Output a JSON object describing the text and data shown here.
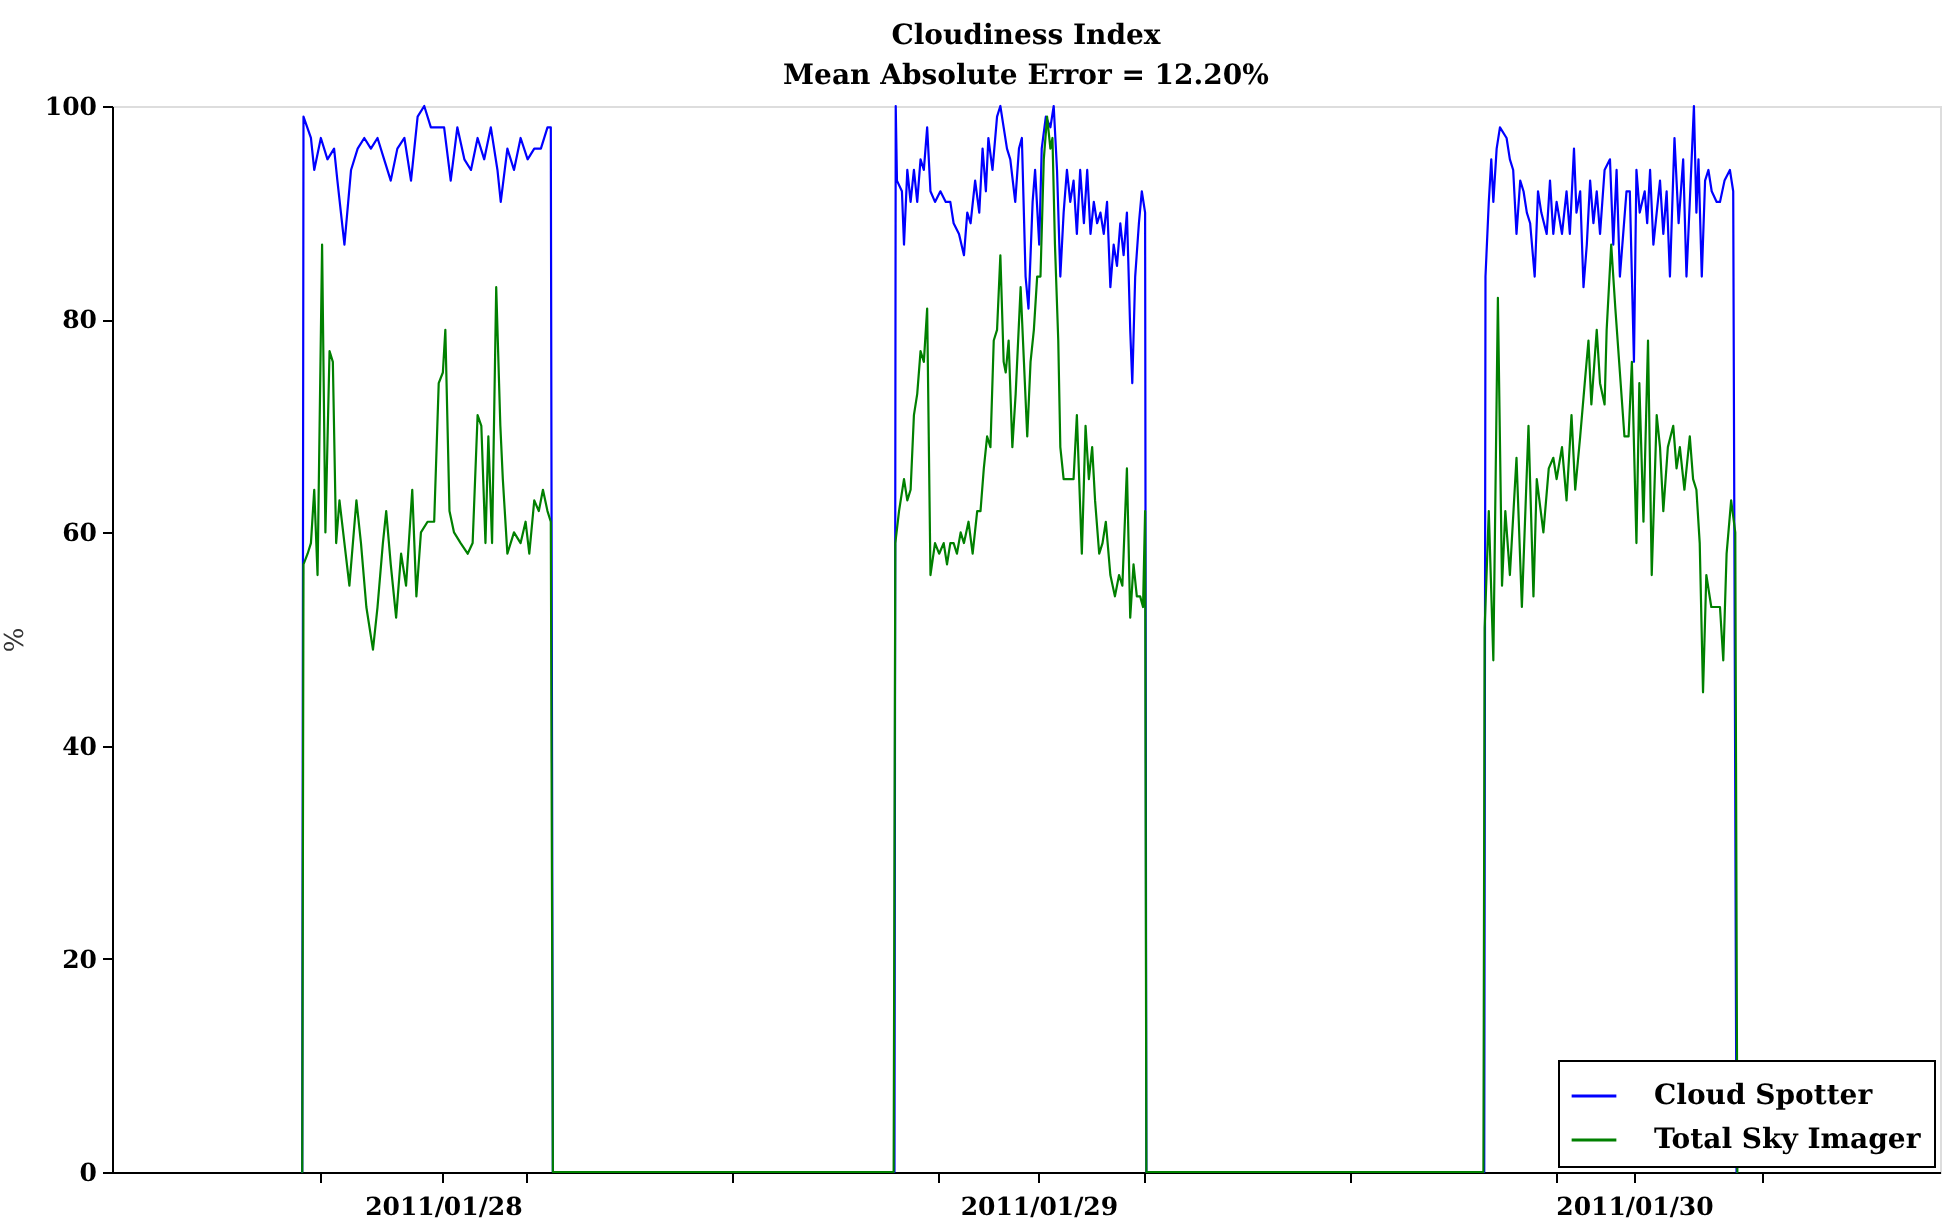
{
  "chart_data": {
    "type": "line",
    "title": "Cloudiness Index",
    "subtitle": "Mean Absolute Error = 12.20%",
    "ylabel": "%",
    "xlim": [
      "2011-01-27T10:40",
      "2011-01-30T12:20"
    ],
    "xticks": [
      {
        "value": "2011-01-27T19:02",
        "label": null
      },
      {
        "value": "2011-01-28",
        "label": "2011/01/28"
      },
      {
        "value": "2011-01-28T03:22",
        "label": null
      },
      {
        "value": "2011-01-28T11:39",
        "label": null
      },
      {
        "value": "2011-01-28T19:55",
        "label": null
      },
      {
        "value": "2011-01-29",
        "label": "2011/01/29"
      },
      {
        "value": "2011-01-29T04:15",
        "label": null
      },
      {
        "value": "2011-01-29T12:33",
        "label": null
      },
      {
        "value": "2011-01-29T20:51",
        "label": null
      },
      {
        "value": "2011-01-30",
        "label": "2011/01/30"
      },
      {
        "value": "2011-01-30T05:10",
        "label": null
      }
    ],
    "ylim": [
      0,
      100
    ],
    "yticks": [
      0,
      20,
      40,
      60,
      80,
      100
    ],
    "legend": "bottom right",
    "series": [
      {
        "name": "Cloud Spotter",
        "color": "#0000ff",
        "x": [
          "2011-01-27T18:20",
          "2011-01-27T18:23",
          "2011-01-27T18:41",
          "2011-01-27T18:49",
          "2011-01-27T19:05",
          "2011-01-27T19:21",
          "2011-01-27T19:37",
          "2011-01-27T19:45",
          "2011-01-27T20:02",
          "2011-01-27T20:18",
          "2011-01-27T20:34",
          "2011-01-27T20:50",
          "2011-01-27T21:06",
          "2011-01-27T21:22",
          "2011-01-27T21:38",
          "2011-01-27T21:54",
          "2011-01-27T22:10",
          "2011-01-27T22:27",
          "2011-01-27T22:43",
          "2011-01-27T22:59",
          "2011-01-27T23:15",
          "2011-01-27T23:31",
          "2011-01-27T23:47",
          "2011-01-28T00:03",
          "2011-01-28T00:19",
          "2011-01-28T00:35",
          "2011-01-28T00:52",
          "2011-01-28T01:08",
          "2011-01-28T01:24",
          "2011-01-28T01:40",
          "2011-01-28T01:56",
          "2011-01-28T02:12",
          "2011-01-28T02:20",
          "2011-01-28T02:36",
          "2011-01-28T02:52",
          "2011-01-28T03:08",
          "2011-01-28T03:25",
          "2011-01-28T03:41",
          "2011-01-28T03:57",
          "2011-01-28T04:13",
          "2011-01-28T04:21",
          "2011-01-28T04:26",
          "2011-01-28T18:12",
          "2011-01-28T18:15",
          "2011-01-28T18:18",
          "2011-01-28T18:30",
          "2011-01-28T18:35",
          "2011-01-28T18:43",
          "2011-01-28T18:51",
          "2011-01-28T18:59",
          "2011-01-28T19:07",
          "2011-01-28T19:15",
          "2011-01-28T19:23",
          "2011-01-28T19:31",
          "2011-01-28T19:39",
          "2011-01-28T19:50",
          "2011-01-28T20:03",
          "2011-01-28T20:16",
          "2011-01-28T20:27",
          "2011-01-28T20:35",
          "2011-01-28T20:48",
          "2011-01-28T21:00",
          "2011-01-28T21:08",
          "2011-01-28T21:16",
          "2011-01-28T21:27",
          "2011-01-28T21:37",
          "2011-01-28T21:45",
          "2011-01-28T21:53",
          "2011-01-28T21:59",
          "2011-01-28T22:09",
          "2011-01-28T22:20",
          "2011-01-28T22:28",
          "2011-01-28T22:36",
          "2011-01-28T22:44",
          "2011-01-28T22:52",
          "2011-01-28T23:04",
          "2011-01-28T23:13",
          "2011-01-28T23:20",
          "2011-01-28T23:29",
          "2011-01-28T23:36",
          "2011-01-28T23:46",
          "2011-01-28T23:52",
          "2011-01-29T00:02",
          "2011-01-29T00:08",
          "2011-01-29T00:18",
          "2011-01-29T00:29",
          "2011-01-29T00:37",
          "2011-01-29T00:45",
          "2011-01-29T00:53",
          "2011-01-29T01:01",
          "2011-01-29T01:09",
          "2011-01-29T01:17",
          "2011-01-29T01:25",
          "2011-01-29T01:33",
          "2011-01-29T01:41",
          "2011-01-29T01:50",
          "2011-01-29T01:58",
          "2011-01-29T02:06",
          "2011-01-29T02:14",
          "2011-01-29T02:22",
          "2011-01-29T02:30",
          "2011-01-29T02:38",
          "2011-01-29T02:46",
          "2011-01-29T02:54",
          "2011-01-29T03:02",
          "2011-01-29T03:10",
          "2011-01-29T03:18",
          "2011-01-29T03:26",
          "2011-01-29T03:34",
          "2011-01-29T03:42",
          "2011-01-29T03:47",
          "2011-01-29T03:54",
          "2011-01-29T04:03",
          "2011-01-29T04:10",
          "2011-01-29T04:18",
          "2011-01-29T04:21",
          "2011-01-29T17:58",
          "2011-01-29T18:01",
          "2011-01-29T18:09",
          "2011-01-29T18:15",
          "2011-01-29T18:20",
          "2011-01-29T18:28",
          "2011-01-29T18:36",
          "2011-01-29T18:52",
          "2011-01-29T19:00",
          "2011-01-29T19:08",
          "2011-01-29T19:16",
          "2011-01-29T19:25",
          "2011-01-29T19:33",
          "2011-01-29T19:41",
          "2011-01-29T19:49",
          "2011-01-29T20:00",
          "2011-01-29T20:08",
          "2011-01-29T20:16",
          "2011-01-29T20:29",
          "2011-01-29T20:37",
          "2011-01-29T20:45",
          "2011-01-29T20:53",
          "2011-01-29T21:06",
          "2011-01-29T21:17",
          "2011-01-29T21:25",
          "2011-01-29T21:35",
          "2011-01-29T21:41",
          "2011-01-29T21:50",
          "2011-01-29T21:58",
          "2011-01-29T22:06",
          "2011-01-29T22:14",
          "2011-01-29T22:22",
          "2011-01-29T22:30",
          "2011-01-29T22:38",
          "2011-01-29T22:49",
          "2011-01-29T23:02",
          "2011-01-29T23:10",
          "2011-01-29T23:18",
          "2011-01-29T23:26",
          "2011-01-29T23:34",
          "2011-01-29T23:42",
          "2011-01-29T23:50",
          "2011-01-30T00:00",
          "2011-01-30T00:06",
          "2011-01-30T00:14",
          "2011-01-30T00:26",
          "2011-01-30T00:32",
          "2011-01-30T00:39",
          "2011-01-30T00:47",
          "2011-01-30T00:55",
          "2011-01-30T01:03",
          "2011-01-30T01:11",
          "2011-01-30T01:19",
          "2011-01-30T01:27",
          "2011-01-30T01:38",
          "2011-01-30T01:48",
          "2011-01-30T01:59",
          "2011-01-30T02:07",
          "2011-01-30T02:15",
          "2011-01-30T02:25",
          "2011-01-30T02:31",
          "2011-01-30T02:36",
          "2011-01-30T02:44",
          "2011-01-30T02:52",
          "2011-01-30T03:00",
          "2011-01-30T03:08",
          "2011-01-30T03:20",
          "2011-01-30T03:28",
          "2011-01-30T03:39",
          "2011-01-30T03:52",
          "2011-01-30T04:00",
          "2011-01-30T04:08"
        ],
        "values": [
          0,
          99,
          97,
          94,
          97,
          95,
          96,
          93,
          87,
          94,
          96,
          97,
          96,
          97,
          95,
          93,
          96,
          97,
          93,
          99,
          100,
          98,
          98,
          98,
          93,
          98,
          95,
          94,
          97,
          95,
          98,
          94,
          91,
          96,
          94,
          97,
          95,
          96,
          96,
          98,
          98,
          0,
          0,
          100,
          93,
          92,
          87,
          94,
          91,
          94,
          91,
          95,
          94,
          98,
          92,
          91,
          92,
          91,
          91,
          89,
          88,
          86,
          90,
          89,
          93,
          90,
          96,
          92,
          97,
          94,
          99,
          100,
          98,
          96,
          95,
          91,
          96,
          97,
          84,
          81,
          91,
          94,
          87,
          96,
          99,
          98,
          100,
          94,
          84,
          90,
          94,
          91,
          93,
          88,
          94,
          89,
          94,
          88,
          91,
          89,
          90,
          88,
          91,
          83,
          87,
          85,
          89,
          86,
          90,
          79,
          74,
          84,
          89,
          92,
          90,
          0,
          0,
          84,
          91,
          95,
          91,
          96,
          98,
          97,
          95,
          94,
          88,
          93,
          92,
          90,
          89,
          84,
          92,
          90,
          88,
          93,
          88,
          91,
          88,
          92,
          88,
          96,
          90,
          92,
          83,
          87,
          93,
          89,
          92,
          88,
          94,
          95,
          87,
          94,
          84,
          88,
          92,
          92,
          76,
          94,
          90,
          92,
          89,
          94,
          87,
          90,
          93,
          88,
          92,
          84,
          97,
          89,
          95,
          84,
          91,
          100,
          90,
          95,
          84,
          93,
          94,
          92,
          91,
          91,
          93,
          94,
          92,
          0
        ]
      },
      {
        "name": "Total Sky Imager",
        "color": "#008000",
        "x": [
          "2011-01-27T18:20",
          "2011-01-27T18:23",
          "2011-01-27T18:33",
          "2011-01-27T18:41",
          "2011-01-27T18:49",
          "2011-01-27T18:57",
          "2011-01-27T19:08",
          "2011-01-27T19:16",
          "2011-01-27T19:26",
          "2011-01-27T19:34",
          "2011-01-27T19:42",
          "2011-01-27T19:50",
          "2011-01-27T20:02",
          "2011-01-27T20:14",
          "2011-01-27T20:31",
          "2011-01-27T20:42",
          "2011-01-27T20:55",
          "2011-01-27T21:11",
          "2011-01-27T21:22",
          "2011-01-27T21:35",
          "2011-01-27T21:43",
          "2011-01-27T21:54",
          "2011-01-27T22:07",
          "2011-01-27T22:19",
          "2011-01-27T22:31",
          "2011-01-27T22:46",
          "2011-01-27T22:56",
          "2011-01-27T23:07",
          "2011-01-27T23:23",
          "2011-01-27T23:39",
          "2011-01-27T23:50",
          "2011-01-28T00:00",
          "2011-01-28T00:06",
          "2011-01-28T00:16",
          "2011-01-28T00:27",
          "2011-01-28T00:43",
          "2011-01-28T01:00",
          "2011-01-28T01:12",
          "2011-01-28T01:24",
          "2011-01-28T01:33",
          "2011-01-28T01:43",
          "2011-01-28T01:50",
          "2011-01-28T01:59",
          "2011-01-28T02:09",
          "2011-01-28T02:19",
          "2011-01-28T02:25",
          "2011-01-28T02:36",
          "2011-01-28T02:52",
          "2011-01-28T03:08",
          "2011-01-28T03:20",
          "2011-01-28T03:29",
          "2011-01-28T03:41",
          "2011-01-28T03:52",
          "2011-01-28T04:02",
          "2011-01-28T04:13",
          "2011-01-28T04:21",
          "2011-01-28T04:26",
          "2011-01-28T18:10",
          "2011-01-28T18:14",
          "2011-01-28T18:23",
          "2011-01-28T18:35",
          "2011-01-28T18:43",
          "2011-01-28T18:51",
          "2011-01-28T18:59",
          "2011-01-28T19:07",
          "2011-01-28T19:15",
          "2011-01-28T19:23",
          "2011-01-28T19:31",
          "2011-01-28T19:39",
          "2011-01-28T19:50",
          "2011-01-28T20:00",
          "2011-01-28T20:11",
          "2011-01-28T20:19",
          "2011-01-28T20:27",
          "2011-01-28T20:35",
          "2011-01-28T20:43",
          "2011-01-28T20:52",
          "2011-01-28T21:00",
          "2011-01-28T21:11",
          "2011-01-28T21:21",
          "2011-01-28T21:32",
          "2011-01-28T21:40",
          "2011-01-28T21:48",
          "2011-01-28T21:56",
          "2011-01-28T22:04",
          "2011-01-28T22:12",
          "2011-01-28T22:20",
          "2011-01-28T22:28",
          "2011-01-28T22:36",
          "2011-01-28T22:41",
          "2011-01-28T22:48",
          "2011-01-28T22:57",
          "2011-01-28T23:05",
          "2011-01-28T23:17",
          "2011-01-28T23:25",
          "2011-01-28T23:33",
          "2011-01-28T23:41",
          "2011-01-28T23:49",
          "2011-01-28T23:57",
          "2011-01-29T00:05",
          "2011-01-29T00:13",
          "2011-01-29T00:21",
          "2011-01-29T00:29",
          "2011-01-29T00:34",
          "2011-01-29T00:40",
          "2011-01-29T00:48",
          "2011-01-29T00:53",
          "2011-01-29T01:01",
          "2011-01-29T01:12",
          "2011-01-29T01:25",
          "2011-01-29T01:33",
          "2011-01-29T01:45",
          "2011-01-29T01:54",
          "2011-01-29T02:02",
          "2011-01-29T02:10",
          "2011-01-29T02:17",
          "2011-01-29T02:27",
          "2011-01-29T02:35",
          "2011-01-29T02:43",
          "2011-01-29T02:54",
          "2011-01-29T03:05",
          "2011-01-29T03:15",
          "2011-01-29T03:23",
          "2011-01-29T03:34",
          "2011-01-29T03:42",
          "2011-01-29T03:50",
          "2011-01-29T03:58",
          "2011-01-29T04:06",
          "2011-01-29T04:13",
          "2011-01-29T04:18",
          "2011-01-29T04:21",
          "2011-01-29T17:56",
          "2011-01-29T17:59",
          "2011-01-29T18:09",
          "2011-01-29T18:20",
          "2011-01-29T18:31",
          "2011-01-29T18:41",
          "2011-01-29T18:49",
          "2011-01-29T19:00",
          "2011-01-29T19:16",
          "2011-01-29T19:29",
          "2011-01-29T19:45",
          "2011-01-29T19:57",
          "2011-01-29T20:05",
          "2011-01-29T20:21",
          "2011-01-29T20:34",
          "2011-01-29T20:45",
          "2011-01-29T20:53",
          "2011-01-29T21:06",
          "2011-01-29T21:17",
          "2011-01-29T21:29",
          "2011-01-29T21:38",
          "2011-01-29T21:50",
          "2011-01-29T22:01",
          "2011-01-29T22:10",
          "2011-01-29T22:17",
          "2011-01-29T22:30",
          "2011-01-29T22:38",
          "2011-01-29T22:49",
          "2011-01-29T22:54",
          "2011-01-29T23:05",
          "2011-01-29T23:15",
          "2011-01-29T23:26",
          "2011-01-29T23:37",
          "2011-01-29T23:47",
          "2011-01-29T23:55",
          "2011-01-30T00:06",
          "2011-01-30T00:13",
          "2011-01-30T00:23",
          "2011-01-30T00:34",
          "2011-01-30T00:43",
          "2011-01-30T00:55",
          "2011-01-30T01:03",
          "2011-01-30T01:11",
          "2011-01-30T01:22",
          "2011-01-30T01:35",
          "2011-01-30T01:43",
          "2011-01-30T01:51",
          "2011-01-30T02:02",
          "2011-01-30T02:15",
          "2011-01-30T02:23",
          "2011-01-30T02:31",
          "2011-01-30T02:39",
          "2011-01-30T02:47",
          "2011-01-30T02:55",
          "2011-01-30T03:07",
          "2011-01-30T03:20",
          "2011-01-30T03:28",
          "2011-01-30T03:36",
          "2011-01-30T03:44",
          "2011-01-30T03:55",
          "2011-01-30T04:05",
          "2011-01-30T04:10"
        ],
        "values": [
          0,
          57,
          58,
          59,
          64,
          56,
          87,
          60,
          77,
          76,
          59,
          63,
          59,
          55,
          63,
          59,
          53,
          49,
          53,
          59,
          62,
          57,
          52,
          58,
          55,
          64,
          54,
          60,
          61,
          61,
          74,
          75,
          79,
          62,
          60,
          59,
          58,
          59,
          71,
          70,
          59,
          69,
          59,
          83,
          70,
          65,
          58,
          60,
          59,
          61,
          58,
          63,
          62,
          64,
          62,
          61,
          0,
          0,
          59,
          62,
          65,
          63,
          64,
          71,
          73,
          77,
          76,
          81,
          56,
          59,
          58,
          59,
          57,
          59,
          59,
          58,
          60,
          59,
          61,
          58,
          62,
          62,
          66,
          69,
          68,
          78,
          79,
          86,
          76,
          75,
          78,
          68,
          73,
          83,
          76,
          69,
          76,
          79,
          84,
          84,
          95,
          99,
          96,
          97,
          87,
          78,
          68,
          65,
          65,
          65,
          71,
          58,
          70,
          65,
          68,
          63,
          58,
          59,
          61,
          56,
          54,
          56,
          55,
          66,
          52,
          57,
          54,
          54,
          53,
          62,
          0,
          0,
          51,
          62,
          48,
          82,
          55,
          62,
          56,
          67,
          53,
          70,
          54,
          65,
          60,
          66,
          67,
          65,
          68,
          63,
          71,
          64,
          69,
          74,
          78,
          72,
          79,
          74,
          72,
          79,
          87,
          81,
          75,
          69,
          69,
          76,
          59,
          74,
          61,
          78,
          56,
          71,
          68,
          62,
          68,
          70,
          66,
          68,
          64,
          69,
          65,
          64,
          59,
          45,
          56,
          53,
          53,
          53,
          48,
          58,
          63,
          60,
          0
        ]
      }
    ]
  }
}
